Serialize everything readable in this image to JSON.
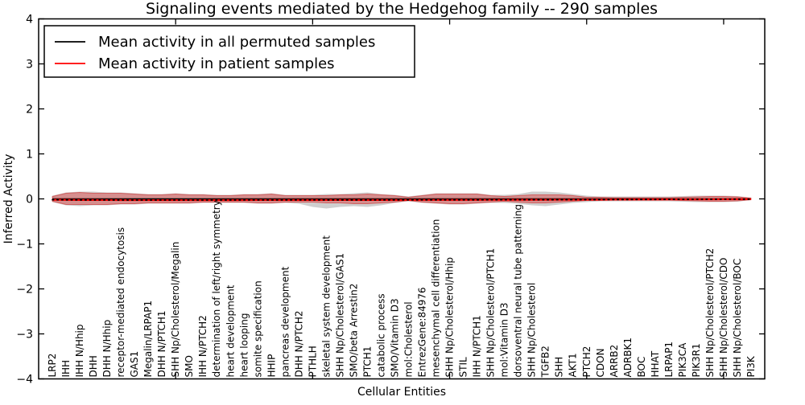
{
  "chart_data": {
    "type": "line",
    "title": "Signaling events mediated by the Hedgehog family -- 290 samples",
    "xlabel": "Cellular Entities",
    "ylabel": "Inferred Activity",
    "ylim": [
      -4,
      4
    ],
    "xlim": [
      0,
      53
    ],
    "grid": false,
    "legend_position": "upper left",
    "ytick_labels": [
      "4",
      "3",
      "2",
      "1",
      "0",
      "−1",
      "−2",
      "−3",
      "−4"
    ],
    "ytick_values": [
      4,
      3,
      2,
      1,
      0,
      -1,
      -2,
      -3,
      -4
    ],
    "xtick_values": [
      10,
      20,
      30,
      40,
      50
    ],
    "categories": [
      "LRP2",
      "IHH",
      "IHH N/Hhip",
      "DHH",
      "DHH N/Hhip",
      "receptor-mediated endocytosis",
      "GAS1",
      "Megalin/LRPAP1",
      "DHH N/PTCH1",
      "SHH Np/Cholesterol/Megalin",
      "SMO",
      "IHH N/PTCH2",
      "determination of left/right symmetry",
      "heart development",
      "heart looping",
      "somite specification",
      "HHIP",
      "pancreas development",
      "DHH N/PTCH2",
      "PTHLH",
      "skeletal system development",
      "SHH Np/Cholesterol/GAS1",
      "SMO/beta Arrestin2",
      "PTCH1",
      "catabolic process",
      "SMO/Vitamin D3",
      "mol:Cholesterol",
      "EntrezGene:84976",
      "mesenchymal cell differentiation",
      "SHH Np/Cholesterol/Hhip",
      "STIL",
      "IHH N/PTCH1",
      "SHH Np/Cholesterol/PTCH1",
      "mol:Vitamin D3",
      "dorsoventral neural tube patterning",
      "SHH Np/Cholesterol",
      "TGFB2",
      "SHH",
      "AKT1",
      "PTCH2",
      "CDON",
      "ARRB2",
      "ADRBK1",
      "BOC",
      "HHAT",
      "LRPAP1",
      "PIK3CA",
      "PIK3R1",
      "SHH Np/Cholesterol/PTCH2",
      "SHH Np/Cholesterol/CDO",
      "SHH Np/Cholesterol/BOC",
      "PI3K"
    ],
    "series": [
      {
        "name": "Mean activity in all permuted samples",
        "color": "#000000",
        "values": [
          0,
          0,
          0,
          0,
          0,
          0,
          0,
          0,
          0,
          0,
          0,
          0,
          0,
          0,
          0,
          0,
          0,
          0,
          0,
          0,
          0,
          0,
          0,
          0,
          0,
          0,
          0,
          0,
          0,
          0,
          0,
          0,
          0,
          0,
          0,
          0,
          0,
          0,
          0,
          0,
          0,
          0,
          0,
          0,
          0,
          0,
          0,
          0,
          0,
          0,
          0,
          0
        ]
      },
      {
        "name": "Mean activity in patient samples",
        "color": "#ff0000",
        "marker_overlay_color": "#000000",
        "values": [
          -0.02,
          -0.022,
          -0.024,
          -0.025,
          -0.026,
          -0.027,
          -0.028,
          -0.028,
          -0.028,
          -0.028,
          -0.028,
          -0.028,
          -0.027,
          -0.027,
          -0.026,
          -0.026,
          -0.026,
          -0.025,
          -0.025,
          -0.025,
          -0.025,
          -0.025,
          -0.025,
          -0.024,
          -0.024,
          -0.024,
          -0.023,
          -0.023,
          -0.023,
          -0.022,
          -0.022,
          -0.022,
          -0.021,
          -0.021,
          -0.02,
          -0.02,
          -0.02,
          -0.019,
          -0.019,
          -0.018,
          -0.017,
          -0.016,
          -0.015,
          -0.014,
          -0.013,
          -0.012,
          -0.011,
          -0.01,
          -0.009,
          -0.008,
          -0.007,
          -0.006
        ]
      }
    ],
    "bands": [
      {
        "name": "permuted-samples-envelope",
        "color": "rgba(130,130,130,0.38)",
        "stroke": "none",
        "upper": [
          0.071,
          0.143,
          0.161,
          0.161,
          0.143,
          0.143,
          0.125,
          0.107,
          0.107,
          0.125,
          0.107,
          0.107,
          0.089,
          0.089,
          0.107,
          0.107,
          0.125,
          0.089,
          0.089,
          0.089,
          0.107,
          0.107,
          0.125,
          0.143,
          0.107,
          0.089,
          0.054,
          0.089,
          0.125,
          0.125,
          0.125,
          0.125,
          0.089,
          0.089,
          0.107,
          0.161,
          0.161,
          0.143,
          0.107,
          0.071,
          0.054,
          0.054,
          0.054,
          0.054,
          0.054,
          0.054,
          0.063,
          0.071,
          0.071,
          0.071,
          0.063,
          0.027
        ],
        "lower": [
          -0.071,
          -0.143,
          -0.161,
          -0.143,
          -0.143,
          -0.125,
          -0.125,
          -0.107,
          -0.107,
          -0.107,
          -0.107,
          -0.089,
          -0.089,
          -0.089,
          -0.089,
          -0.107,
          -0.107,
          -0.089,
          -0.107,
          -0.179,
          -0.214,
          -0.179,
          -0.161,
          -0.179,
          -0.143,
          -0.089,
          -0.054,
          -0.089,
          -0.107,
          -0.125,
          -0.125,
          -0.107,
          -0.089,
          -0.089,
          -0.107,
          -0.143,
          -0.161,
          -0.125,
          -0.089,
          -0.071,
          -0.054,
          -0.054,
          -0.054,
          -0.054,
          -0.054,
          -0.054,
          -0.063,
          -0.071,
          -0.071,
          -0.071,
          -0.063,
          -0.027
        ]
      },
      {
        "name": "patient-samples-envelope",
        "color": "rgba(225,45,45,0.40)",
        "stroke": "rgba(205,35,35,0.55)",
        "upper": [
          0.054,
          0.125,
          0.143,
          0.125,
          0.125,
          0.125,
          0.107,
          0.089,
          0.089,
          0.107,
          0.089,
          0.089,
          0.071,
          0.071,
          0.089,
          0.089,
          0.107,
          0.071,
          0.071,
          0.071,
          0.071,
          0.089,
          0.089,
          0.107,
          0.089,
          0.071,
          0.036,
          0.071,
          0.107,
          0.107,
          0.107,
          0.107,
          0.071,
          0.054,
          0.071,
          0.089,
          0.089,
          0.089,
          0.071,
          0.036,
          0.036,
          0.027,
          0.027,
          0.027,
          0.027,
          0.027,
          0.036,
          0.045,
          0.054,
          0.054,
          0.045,
          0.018
        ],
        "lower": [
          -0.054,
          -0.125,
          -0.125,
          -0.125,
          -0.125,
          -0.107,
          -0.107,
          -0.089,
          -0.089,
          -0.089,
          -0.089,
          -0.071,
          -0.071,
          -0.071,
          -0.071,
          -0.089,
          -0.089,
          -0.071,
          -0.071,
          -0.071,
          -0.089,
          -0.089,
          -0.107,
          -0.107,
          -0.089,
          -0.071,
          -0.036,
          -0.071,
          -0.089,
          -0.107,
          -0.107,
          -0.089,
          -0.071,
          -0.054,
          -0.071,
          -0.089,
          -0.089,
          -0.071,
          -0.054,
          -0.036,
          -0.036,
          -0.027,
          -0.027,
          -0.027,
          -0.027,
          -0.027,
          -0.036,
          -0.045,
          -0.054,
          -0.054,
          -0.045,
          -0.018
        ]
      }
    ]
  }
}
